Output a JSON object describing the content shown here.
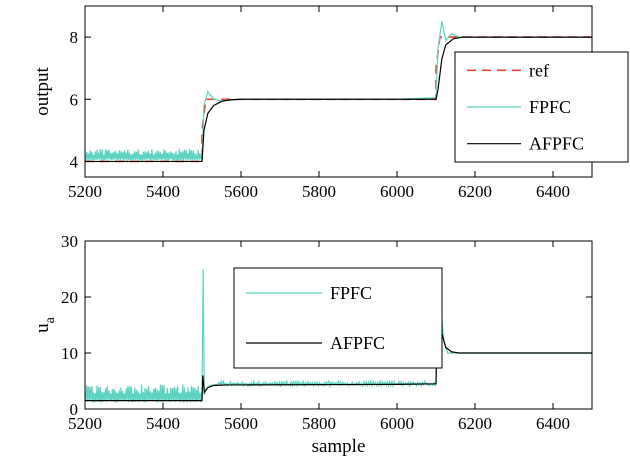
{
  "chart_data": [
    {
      "type": "line",
      "xlabel": "",
      "ylabel": "output",
      "xlim": [
        5200,
        6500
      ],
      "ylim": [
        3.5,
        9
      ],
      "xticks": [
        5200,
        5400,
        5600,
        5800,
        6000,
        6200,
        6400
      ],
      "yticks": [
        4,
        6,
        8
      ],
      "grid": false,
      "legend": "right",
      "series": [
        {
          "name": "ref",
          "color": "#e8402a",
          "style": "dashed",
          "x": [
            5200,
            5500,
            5500,
            5510,
            6100,
            6100,
            6110,
            6500
          ],
          "y": [
            4,
            4,
            5,
            6,
            6,
            7,
            8,
            8
          ]
        },
        {
          "name": "FPFC",
          "color": "#5fd3c1",
          "style": "solid",
          "x": [
            5200,
            5230,
            5260,
            5290,
            5320,
            5350,
            5380,
            5410,
            5440,
            5470,
            5500,
            5505,
            5515,
            5530,
            5550,
            5600,
            6000,
            6100,
            6105,
            6115,
            6125,
            6140,
            6160,
            6200,
            6500
          ],
          "y": [
            4.1,
            4.4,
            3.9,
            4.3,
            3.9,
            4.4,
            3.9,
            4.35,
            3.9,
            4.4,
            4.0,
            5.8,
            6.25,
            6.0,
            5.95,
            6.0,
            6.0,
            6.05,
            7.6,
            8.5,
            7.9,
            8.1,
            8.0,
            8.0,
            8.0
          ],
          "note_ripple_amplitude": 0.3
        },
        {
          "name": "AFPFC",
          "color": "#000000",
          "style": "solid",
          "x": [
            5200,
            5500,
            5505,
            5515,
            5530,
            5550,
            5570,
            5600,
            6100,
            6105,
            6115,
            6125,
            6145,
            6170,
            6200,
            6500
          ],
          "y": [
            4.0,
            4.0,
            5.0,
            5.55,
            5.8,
            5.93,
            5.98,
            6.0,
            6.0,
            6.3,
            7.3,
            7.75,
            7.95,
            8.0,
            8.0,
            8.0
          ]
        }
      ]
    },
    {
      "type": "line",
      "xlabel": "sample",
      "ylabel": "u_a",
      "xlim": [
        5200,
        6500
      ],
      "ylim": [
        0,
        30
      ],
      "xticks": [
        5200,
        5400,
        5600,
        5800,
        6000,
        6200,
        6400
      ],
      "yticks": [
        0,
        10,
        20,
        30
      ],
      "grid": false,
      "legend": "top-center",
      "series": [
        {
          "name": "FPFC",
          "color": "#5fd3c1",
          "style": "solid",
          "x": [
            5200,
            5500,
            5503,
            5506,
            5510,
            5520,
            5540,
            5600,
            6000,
            6100,
            6103,
            6107,
            6112,
            6120,
            6130,
            6150,
            6200,
            6500
          ],
          "y": [
            1.8,
            1.8,
            25,
            2.5,
            3.5,
            4.2,
            4.5,
            4.5,
            4.5,
            4.5,
            25,
            14,
            19,
            12,
            10,
            10,
            10,
            10
          ],
          "note_ripple_amplitude": 2.6
        },
        {
          "name": "AFPFC",
          "color": "#000000",
          "style": "solid",
          "x": [
            5200,
            5500,
            5502,
            5506,
            5515,
            5530,
            5560,
            5600,
            6000,
            6100,
            6104,
            6108,
            6115,
            6125,
            6140,
            6160,
            6200,
            6500
          ],
          "y": [
            1.5,
            1.5,
            6,
            3.0,
            3.8,
            4.2,
            4.3,
            4.3,
            4.4,
            4.5,
            16.5,
            15,
            13.5,
            11,
            10.2,
            10,
            10,
            10
          ]
        }
      ]
    }
  ]
}
